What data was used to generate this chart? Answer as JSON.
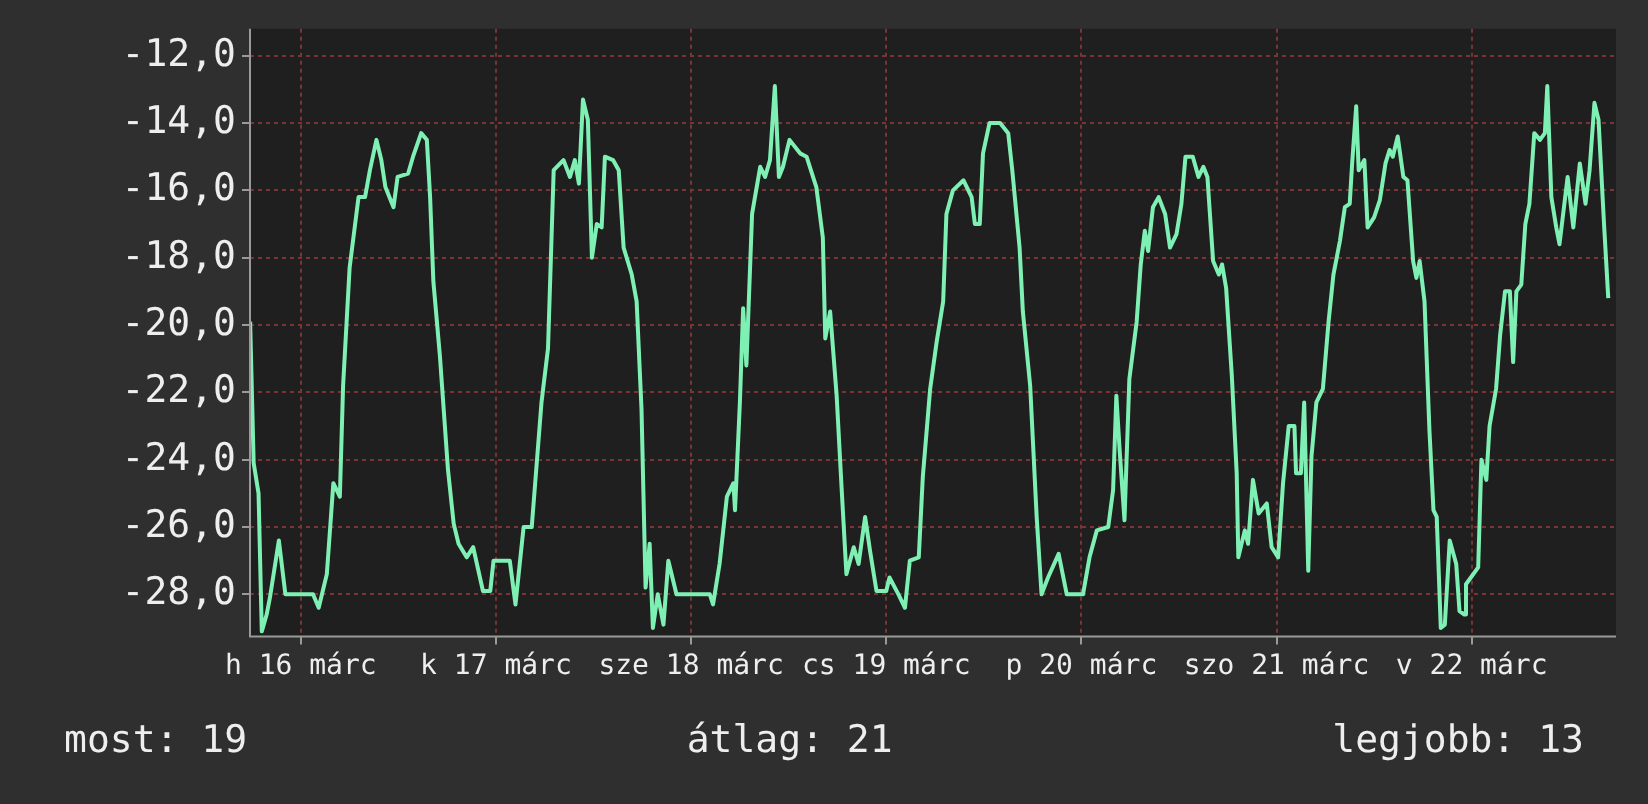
{
  "chart_data": {
    "type": "line",
    "x": [
      "--03-16T05:46",
      "--03-16T06:12",
      "--03-16T06:48",
      "--03-16T07:12",
      "--03-16T07:48",
      "--03-16T08:12",
      "--03-16T09:18",
      "--03-16T10:06",
      "--03-16T13:30",
      "--03-16T14:12",
      "--03-16T15:12",
      "--03-16T16:00",
      "--03-16T16:48",
      "--03-16T17:12",
      "--03-16T18:00",
      "--03-16T19:06",
      "--03-16T19:54",
      "--03-16T20:30",
      "--03-16T21:18",
      "--03-16T21:54",
      "--03-16T22:24",
      "--03-16T23:24",
      "--03-16T23:54",
      "--03-17T01:12",
      "--03-17T01:48",
      "--03-17T02:48",
      "--03-17T03:30",
      "--03-17T03:54",
      "--03-17T04:18",
      "--03-17T05:06",
      "--03-17T06:06",
      "--03-17T06:48",
      "--03-17T07:24",
      "--03-17T08:24",
      "--03-17T09:12",
      "--03-17T10:24",
      "--03-17T11:18",
      "--03-17T11:42",
      "--03-17T13:42",
      "--03-17T14:24",
      "--03-17T15:24",
      "--03-17T16:24",
      "--03-17T17:36",
      "--03-17T18:24",
      "--03-17T19:06",
      "--03-17T20:18",
      "--03-17T21:06",
      "--03-17T21:42",
      "--03-17T22:12",
      "--03-17T22:42",
      "--03-17T23:18",
      "--03-17T23:48",
      "--03-18T00:24",
      "--03-18T01:00",
      "--03-18T01:24",
      "--03-18T02:24",
      "--03-18T03:06",
      "--03-18T03:42",
      "--03-18T04:42",
      "--03-18T05:18",
      "--03-18T05:54",
      "--03-18T06:24",
      "--03-18T06:54",
      "--03-18T07:18",
      "--03-18T07:54",
      "--03-18T08:36",
      "--03-18T09:12",
      "--03-18T10:12",
      "--03-18T14:18",
      "--03-18T14:42",
      "--03-18T15:30",
      "--03-18T16:24",
      "--03-18T17:12",
      "--03-18T17:24",
      "--03-18T18:00",
      "--03-18T18:24",
      "--03-18T18:48",
      "--03-18T19:30",
      "--03-18T20:30",
      "--03-18T21:06",
      "--03-18T21:42",
      "--03-18T22:18",
      "--03-18T22:48",
      "--03-18T23:18",
      "--03-19T00:06",
      "--03-19T01:24",
      "--03-19T02:12",
      "--03-19T03:24",
      "--03-19T04:12",
      "--03-19T04:30",
      "--03-19T05:06",
      "--03-19T05:54",
      "--03-19T06:30",
      "--03-19T07:06",
      "--03-19T08:00",
      "--03-19T08:36",
      "--03-19T09:24",
      "--03-19T10:00",
      "--03-19T10:48",
      "--03-19T12:00",
      "--03-19T12:24",
      "--03-19T13:30",
      "--03-19T14:18",
      "--03-19T14:54",
      "--03-19T16:00",
      "--03-19T16:30",
      "--03-19T17:24",
      "--03-19T18:12",
      "--03-19T19:00",
      "--03-19T19:24",
      "--03-19T20:12",
      "--03-19T21:30",
      "--03-19T22:30",
      "--03-19T22:54",
      "--03-19T23:30",
      "--03-19T23:54",
      "--03-20T00:42",
      "--03-20T02:00",
      "--03-20T03:00",
      "--03-20T03:30",
      "--03-20T04:24",
      "--03-20T04:48",
      "--03-20T05:42",
      "--03-20T06:30",
      "--03-20T07:06",
      "--03-20T07:54",
      "--03-20T09:12",
      "--03-20T10:12",
      "--03-20T12:12",
      "--03-20T13:00",
      "--03-20T13:54",
      "--03-20T15:18",
      "--03-20T15:54",
      "--03-20T16:18",
      "--03-20T16:42",
      "--03-20T17:18",
      "--03-20T17:54",
      "--03-20T18:48",
      "--03-20T19:18",
      "--03-20T19:48",
      "--03-20T20:12",
      "--03-20T20:48",
      "--03-20T21:30",
      "--03-20T22:18",
      "--03-20T22:54",
      "--03-20T23:42",
      "--03-21T00:18",
      "--03-21T00:48",
      "--03-21T01:42",
      "--03-21T02:24",
      "--03-21T03:00",
      "--03-21T03:30",
      "--03-21T04:12",
      "--03-21T04:54",
      "--03-21T05:18",
      "--03-21T05:48",
      "--03-21T06:30",
      "--03-21T07:06",
      "--03-21T07:18",
      "--03-21T08:06",
      "--03-21T08:30",
      "--03-21T09:06",
      "--03-21T09:48",
      "--03-21T10:48",
      "--03-21T11:24",
      "--03-21T12:12",
      "--03-21T12:48",
      "--03-21T13:30",
      "--03-21T14:12",
      "--03-21T14:24",
      "--03-21T15:00",
      "--03-21T15:24",
      "--03-21T15:54",
      "--03-21T16:18",
      "--03-21T16:54",
      "--03-21T17:42",
      "--03-21T18:24",
      "--03-21T19:00",
      "--03-21T19:48",
      "--03-21T20:24",
      "--03-21T21:00",
      "--03-21T21:18",
      "--03-21T21:48",
      "--03-21T22:06",
      "--03-21T22:48",
      "--03-21T23:12",
      "--03-22T00:00",
      "--03-22T00:42",
      "--03-22T01:24",
      "--03-22T01:54",
      "--03-22T02:18",
      "--03-22T02:54",
      "--03-22T03:36",
      "--03-22T04:06",
      "--03-22T04:48",
      "--03-22T05:12",
      "--03-22T05:36",
      "--03-22T06:12",
      "--03-22T06:48",
      "--03-22T07:18",
      "--03-22T07:42",
      "--03-22T08:12",
      "--03-22T08:42",
      "--03-22T09:18",
      "--03-22T10:06",
      "--03-22T10:30",
      "--03-22T11:06",
      "--03-22T11:18",
      "--03-22T12:48",
      "--03-22T13:12",
      "--03-22T13:48",
      "--03-22T14:12",
      "--03-22T15:00",
      "--03-22T15:30",
      "--03-22T16:06",
      "--03-22T16:42",
      "--03-22T17:06",
      "--03-22T17:30",
      "--03-22T18:06",
      "--03-22T18:36",
      "--03-22T19:06",
      "--03-22T19:42",
      "--03-22T20:24",
      "--03-22T21:00",
      "--03-22T21:18",
      "--03-22T21:48",
      "--03-22T22:24",
      "--03-22T22:48",
      "--03-22T23:48",
      "--03-23T00:30",
      "--03-23T01:18",
      "--03-23T02:00",
      "--03-23T02:30",
      "--03-23T03:06",
      "--03-23T03:36",
      "--03-23T04:18",
      "--03-23T04:48"
    ],
    "series": [
      {
        "color": "#7ef0b4",
        "values": [
          -19.9,
          -24.1,
          -25.0,
          -29.1,
          -28.6,
          -28.1,
          -26.4,
          -28.0,
          -28.0,
          -28.4,
          -27.4,
          -24.7,
          -25.1,
          -21.8,
          -18.3,
          -16.2,
          -16.2,
          -15.4,
          -14.5,
          -15.1,
          -15.9,
          -16.5,
          -15.6,
          -15.5,
          -15.0,
          -14.3,
          -14.5,
          -16.2,
          -18.7,
          -20.9,
          -24.3,
          -25.9,
          -26.5,
          -26.9,
          -26.6,
          -27.9,
          -27.9,
          -27.0,
          -27.0,
          -28.3,
          -26.0,
          -26.0,
          -22.3,
          -20.7,
          -15.4,
          -15.1,
          -15.6,
          -15.1,
          -15.8,
          -13.3,
          -13.9,
          -18.0,
          -17.0,
          -17.1,
          -15.0,
          -15.1,
          -15.4,
          -17.7,
          -18.5,
          -19.3,
          -22.5,
          -27.8,
          -26.5,
          -29.0,
          -28.0,
          -28.9,
          -27.0,
          -28.0,
          -28.0,
          -28.3,
          -27.1,
          -25.1,
          -24.7,
          -25.5,
          -22.3,
          -19.5,
          -21.2,
          -16.7,
          -15.3,
          -15.6,
          -15.1,
          -12.9,
          -15.6,
          -15.3,
          -14.5,
          -14.9,
          -15.0,
          -15.9,
          -17.4,
          -20.4,
          -19.6,
          -22.1,
          -24.8,
          -27.4,
          -26.6,
          -27.1,
          -25.7,
          -26.7,
          -27.9,
          -27.9,
          -27.5,
          -28.0,
          -28.4,
          -27.0,
          -26.9,
          -24.5,
          -21.9,
          -20.5,
          -19.3,
          -16.7,
          -16.0,
          -15.7,
          -16.2,
          -17.0,
          -17.0,
          -14.9,
          -14.0,
          -14.0,
          -14.3,
          -15.4,
          -17.7,
          -19.6,
          -21.8,
          -25.7,
          -28.0,
          -27.5,
          -26.8,
          -28.0,
          -28.0,
          -26.9,
          -26.1,
          -26.0,
          -24.9,
          -22.1,
          -23.7,
          -25.8,
          -21.6,
          -19.9,
          -18.2,
          -17.2,
          -17.8,
          -16.5,
          -16.2,
          -16.7,
          -17.7,
          -17.3,
          -16.4,
          -15.0,
          -15.0,
          -15.6,
          -15.3,
          -15.6,
          -18.1,
          -18.5,
          -18.2,
          -18.9,
          -21.5,
          -24.4,
          -26.9,
          -26.1,
          -26.5,
          -24.6,
          -25.6,
          -25.3,
          -26.6,
          -26.9,
          -24.7,
          -23.0,
          -23.0,
          -24.4,
          -24.4,
          -22.3,
          -27.3,
          -23.9,
          -22.3,
          -21.9,
          -19.9,
          -18.5,
          -17.5,
          -16.5,
          -16.4,
          -15.2,
          -13.5,
          -15.4,
          -15.1,
          -17.1,
          -16.8,
          -16.3,
          -15.2,
          -14.8,
          -15.0,
          -14.4,
          -15.6,
          -15.7,
          -18.1,
          -18.6,
          -18.1,
          -19.3,
          -23.1,
          -25.5,
          -25.7,
          -29.0,
          -28.9,
          -26.4,
          -27.1,
          -28.5,
          -28.6,
          -27.7,
          -27.2,
          -24.0,
          -24.6,
          -23.0,
          -21.9,
          -20.3,
          -19.0,
          -19.0,
          -21.1,
          -19.0,
          -18.8,
          -17.0,
          -16.4,
          -14.3,
          -14.5,
          -14.3,
          -12.9,
          -16.2,
          -17.1,
          -17.6,
          -15.6,
          -17.1,
          -15.2,
          -16.4,
          -15.4,
          -13.4,
          -13.9,
          -17.1,
          -19.2
        ]
      }
    ],
    "xlim": [
      "--03-16T05:45",
      "--03-23T05:45"
    ],
    "xticks": [
      {
        "value": "--03-16T12:00",
        "label": "h 16 márc"
      },
      {
        "value": "--03-17T12:00",
        "label": "k 17 márc"
      },
      {
        "value": "--03-18T12:00",
        "label": "sze 18 márc"
      },
      {
        "value": "--03-19T12:00",
        "label": "cs 19 márc"
      },
      {
        "value": "--03-20T12:00",
        "label": "p 20 márc"
      },
      {
        "value": "--03-21T12:00",
        "label": "szo 21 márc"
      },
      {
        "value": "--03-22T12:00",
        "label": "v 22 márc"
      }
    ],
    "ylim": [
      -29.25,
      -11.2
    ],
    "yticks": [
      {
        "value": -28,
        "label": "-28,0"
      },
      {
        "value": -26,
        "label": "-26,0"
      },
      {
        "value": -24,
        "label": "-24,0"
      },
      {
        "value": -22,
        "label": "-22,0"
      },
      {
        "value": -20,
        "label": "-20,0"
      },
      {
        "value": -18,
        "label": "-18,0"
      },
      {
        "value": -16,
        "label": "-16,0"
      },
      {
        "value": -14,
        "label": "-14,0"
      },
      {
        "value": -12,
        "label": "-12,0"
      }
    ],
    "grid": true,
    "legend": false,
    "marker": "none",
    "line_style": "solid",
    "annotations": [
      "most: 19",
      "átlag: 21",
      "legjobb: 13"
    ]
  }
}
